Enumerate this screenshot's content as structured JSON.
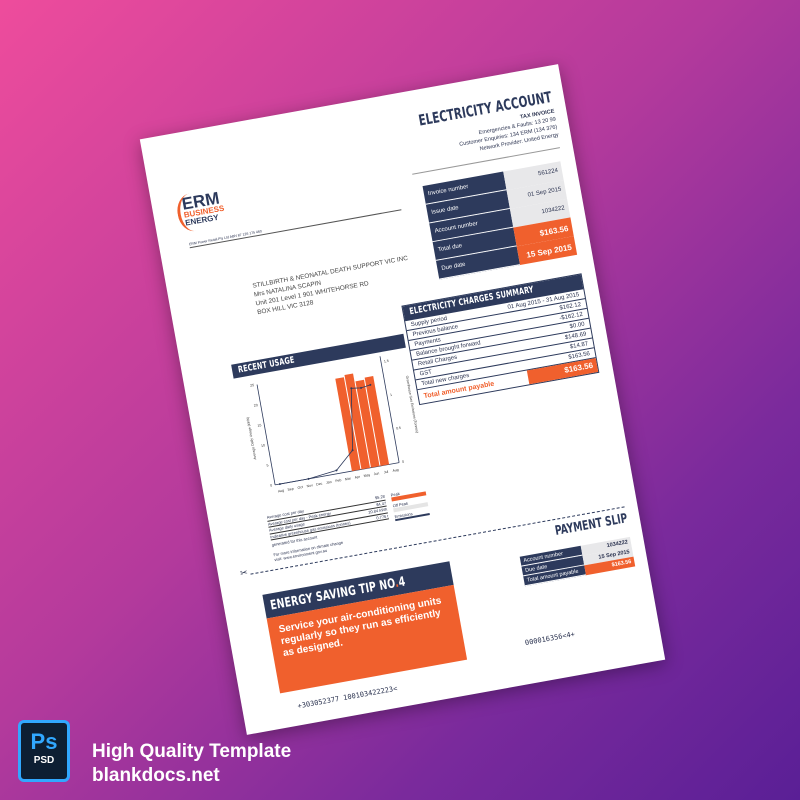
{
  "header": {
    "title": "ELECTRICITY ACCOUNT",
    "subtitle": "TAX INVOICE",
    "emergencies": "Emergencies & Faults: 13 20 99",
    "enquiries": "Customer Enquiries: 134 ERM (134 376)",
    "network": "Network Provider: United Energy"
  },
  "logo": {
    "line1": "ERM",
    "line2": "BUSINESS",
    "line3": "ENERGY",
    "abn": "ERM Power Retail Pty Ltd ABN 87 126 175 460"
  },
  "address": [
    "STILLBIRTH & NEONATAL DEATH SUPPORT VIC INC",
    "Mrs NATALINA  SCAPIN",
    "Unit 201 Level 1 901 WHITEHORSE RD",
    "BOX HILL VIC 3128"
  ],
  "invoice": [
    {
      "label": "Invoice number",
      "value": "561224"
    },
    {
      "label": "Issue date",
      "value": "01 Sep 2015"
    },
    {
      "label": "Account number",
      "value": "1034222"
    },
    {
      "label": "Total due",
      "value": "$163.56",
      "highlight": true
    },
    {
      "label": "Due date",
      "value": "15 Sep 2015",
      "highlight": true
    }
  ],
  "usage": {
    "title": "RECENT USAGE",
    "stats": [
      {
        "label": "Average cost per day",
        "value": "$5.28"
      },
      {
        "label": "Average cost per day - Peak energy",
        "value": "$4.47"
      },
      {
        "label": "Average daily usage",
        "value": "20.84 kWh"
      },
      {
        "label": "Indicative greenhouse gas emissions (tonnes)",
        "value": "0.776 t"
      }
    ],
    "note1": "generated for this account",
    "note2": "For more information on climate change",
    "note3": "visit: www.environment.gov.au",
    "legend": [
      "Peak",
      "Off Peak",
      "Emissions"
    ]
  },
  "chart_data": {
    "type": "bar",
    "ylabel": "Average Daily Usage (kWh)",
    "y2label": "Greenhouse Gas Emissions (Tonnes)",
    "ylim": [
      0,
      25
    ],
    "y2lim": [
      0,
      1.5
    ],
    "categories": [
      "Aug",
      "Sep",
      "Oct",
      "Nov",
      "Dec",
      "Jan",
      "Feb",
      "Mar",
      "Apr",
      "May",
      "Jun",
      "Jul",
      "Aug"
    ],
    "series": [
      {
        "name": "Peak",
        "values": [
          0,
          0,
          0,
          0,
          0,
          0,
          0,
          0,
          23,
          23.5,
          21.5,
          22,
          0
        ],
        "color": "#f0602d"
      },
      {
        "name": "Emissions",
        "type": "line",
        "values": [
          0,
          null,
          null,
          0,
          null,
          null,
          0.05,
          null,
          0.3,
          1.2,
          1.18,
          1.2,
          null
        ],
        "color": "#2d3a5c"
      }
    ]
  },
  "summary": {
    "title": "ELECTRICITY CHARGES SUMMARY",
    "rows": [
      {
        "label": "Supply period",
        "value": "01 Aug 2015 - 31 Aug 2015"
      },
      {
        "label": "Previous balance",
        "value": "$162.12"
      },
      {
        "label": "Payments",
        "value": "-$162.12"
      },
      {
        "label": "Balance brought forward",
        "value": "$0.00"
      },
      {
        "label": "Retail Charges",
        "value": "$148.69"
      },
      {
        "label": "GST",
        "value": "$14.87"
      },
      {
        "label": "Total new charges",
        "value": "$163.56"
      }
    ],
    "total_label": "Total amount payable",
    "total_value": "$163.56"
  },
  "tip": {
    "title_a": "ENERGY SAVING TIP NO",
    "title_b": ".",
    "title_c": "4",
    "text": "Service your air-conditioning units regularly so they run as efficiently as designed."
  },
  "slip": {
    "title": "PAYMENT SLIP",
    "rows": [
      {
        "label": "Account number",
        "value": "1034222"
      },
      {
        "label": "Due date",
        "value": "15 Sep 2015"
      },
      {
        "label": "Total amount payable",
        "value": "$163.56",
        "highlight": true
      }
    ],
    "code1": "000016356<4+",
    "code2": "+303052377  100103422223<"
  },
  "branding": {
    "badge_a": "Ps",
    "badge_b": "PSD",
    "line1": "High Quality Template",
    "line2": "blankdocs.net"
  },
  "colors": {
    "navy": "#2d3a5c",
    "orange": "#f0602d"
  }
}
